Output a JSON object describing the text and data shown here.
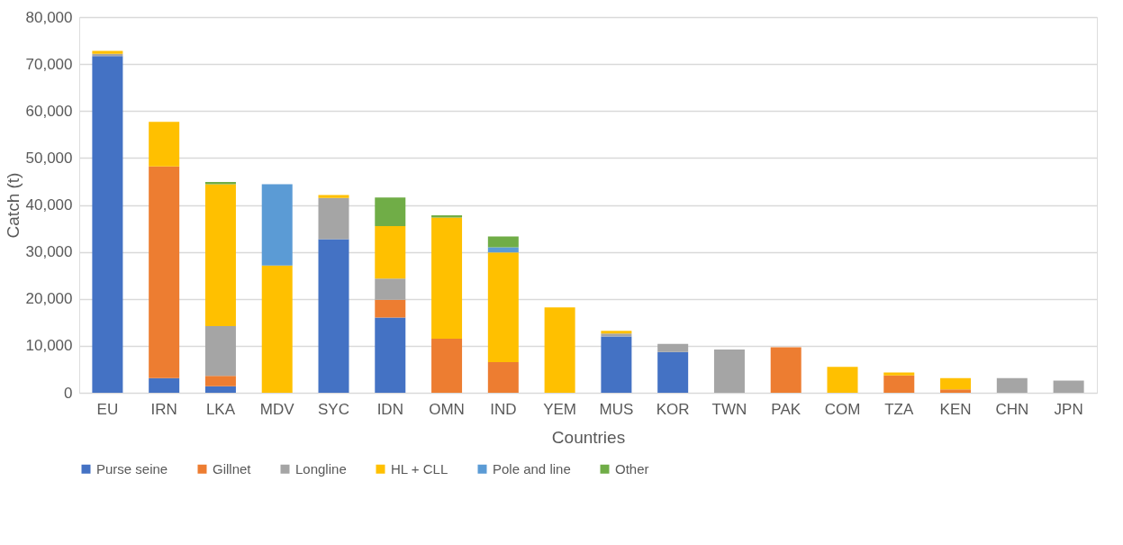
{
  "chart_data": {
    "type": "bar",
    "stacked": true,
    "xlabel": "Countries",
    "ylabel": "Catch (t)",
    "categories": [
      "EU",
      "IRN",
      "LKA",
      "MDV",
      "SYC",
      "IDN",
      "OMN",
      "IND",
      "YEM",
      "MUS",
      "KOR",
      "TWN",
      "PAK",
      "COM",
      "TZA",
      "KEN",
      "CHN",
      "JPN"
    ],
    "series": [
      {
        "name": "Purse seine",
        "color": "#4472c4",
        "values": [
          71700,
          3100,
          1400,
          null,
          32700,
          16000,
          null,
          null,
          null,
          12000,
          8700,
          null,
          null,
          null,
          null,
          null,
          null,
          null
        ]
      },
      {
        "name": "Gillnet",
        "color": "#ed7d31",
        "values": [
          null,
          45100,
          2200,
          null,
          null,
          3800,
          11500,
          6500,
          null,
          null,
          null,
          null,
          9700,
          null,
          3700,
          700,
          null,
          null
        ]
      },
      {
        "name": "Longline",
        "color": "#a5a5a5",
        "values": [
          500,
          null,
          10600,
          null,
          8800,
          4500,
          null,
          null,
          null,
          600,
          1700,
          9200,
          null,
          null,
          null,
          null,
          3100,
          2600
        ]
      },
      {
        "name": "HL + CLL",
        "color": "#ffc000",
        "values": [
          600,
          9500,
          30200,
          27100,
          600,
          11200,
          25800,
          23400,
          18200,
          600,
          null,
          null,
          null,
          5500,
          600,
          2400,
          null,
          null
        ]
      },
      {
        "name": "Pole and line",
        "color": "#5b9bd5",
        "values": [
          null,
          null,
          null,
          17300,
          null,
          null,
          null,
          1100,
          null,
          null,
          null,
          null,
          null,
          null,
          null,
          null,
          null,
          null
        ]
      },
      {
        "name": "Other",
        "color": "#70ad47",
        "values": [
          null,
          null,
          500,
          null,
          null,
          6100,
          500,
          2300,
          null,
          null,
          null,
          null,
          null,
          null,
          null,
          null,
          null,
          null
        ]
      }
    ],
    "ylim": [
      0,
      80000
    ],
    "yticks": [
      0,
      {
        "value": 10000,
        "label": "10,000"
      },
      {
        "value": 20000,
        "label": "20,000"
      },
      {
        "value": 30000,
        "label": "30,000"
      },
      {
        "value": 40000,
        "label": "40,000"
      },
      {
        "value": 50000,
        "label": "50,000"
      },
      {
        "value": 60000,
        "label": "60,000"
      },
      {
        "value": 70000,
        "label": "70,000"
      },
      {
        "value": 80000,
        "label": "80,000"
      }
    ],
    "grid": "y",
    "legend": "bottom"
  }
}
